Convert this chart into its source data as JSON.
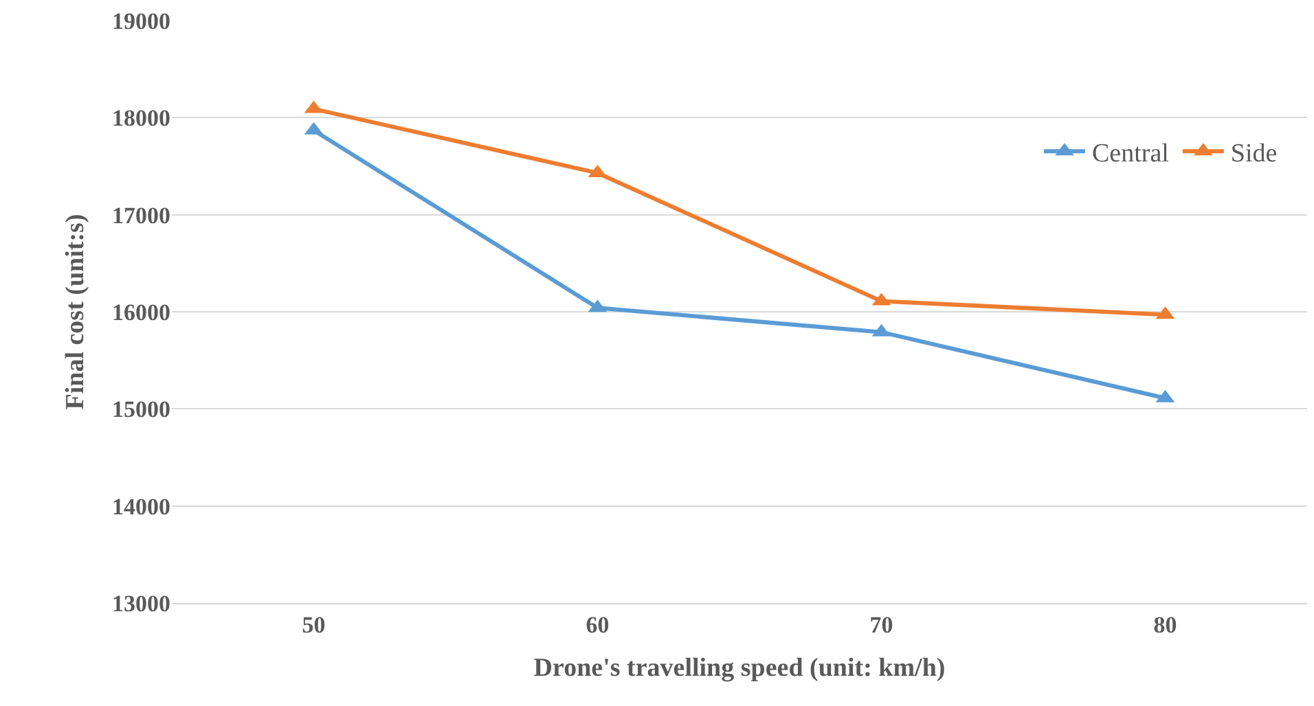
{
  "chart_data": {
    "type": "line",
    "xlabel": "Drone's travelling speed (unit: km/h)",
    "ylabel": "Final cost (unit:s)",
    "categories": [
      "50",
      "60",
      "70",
      "80"
    ],
    "series": [
      {
        "name": "Central",
        "color": "#5b9bd5",
        "values": [
          17870,
          16040,
          15790,
          15110
        ]
      },
      {
        "name": "Side",
        "color": "#ed7d31",
        "values": [
          18090,
          17430,
          16110,
          15970
        ]
      }
    ],
    "ylim": [
      13000,
      19000
    ],
    "yticks": [
      13000,
      14000,
      15000,
      16000,
      17000,
      18000,
      19000
    ],
    "grid": "y",
    "legend": "top right",
    "marker": "triangle",
    "line_style": "solid"
  }
}
